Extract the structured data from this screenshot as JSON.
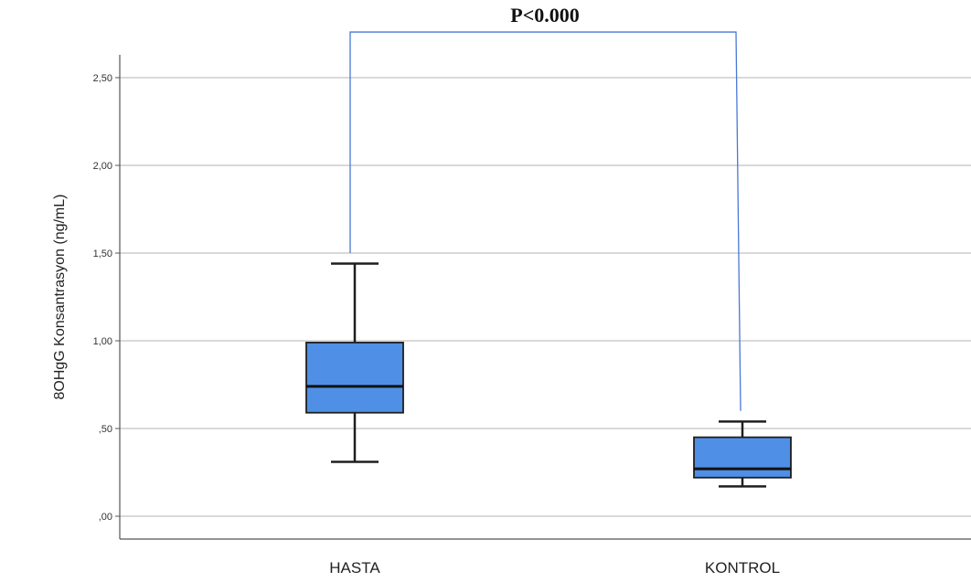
{
  "chart_data": {
    "type": "boxplot",
    "title": "",
    "xlabel": "",
    "ylabel": "8OHgG Konsantrasyon (ng/mL)",
    "ylim": [
      -0.13,
      2.62
    ],
    "yticks": [
      0.0,
      0.5,
      1.0,
      1.5,
      2.0,
      2.5
    ],
    "ytick_labels": [
      ",00",
      ",50",
      "1,00",
      "1,50",
      "2,00",
      "2,50"
    ],
    "grid": true,
    "categories": [
      "HASTA",
      "KONTROL"
    ],
    "series": [
      {
        "boxes": [
          {
            "min": 0.31,
            "q1": 0.59,
            "median": 0.74,
            "q3": 0.99,
            "max": 1.44
          },
          {
            "min": 0.17,
            "q1": 0.22,
            "median": 0.27,
            "q3": 0.45,
            "max": 0.54
          }
        ]
      }
    ],
    "annotation": {
      "text": "P<0.000",
      "bracket_top": 2.76,
      "left_end": 1.5,
      "right_end": 0.6
    },
    "colors": {
      "box_fill": "#4f8fe6",
      "box_stroke": "#1f1f1f",
      "bracket": "#4a78d6",
      "grid": "#d9d9d9",
      "axis": "#555555"
    }
  }
}
